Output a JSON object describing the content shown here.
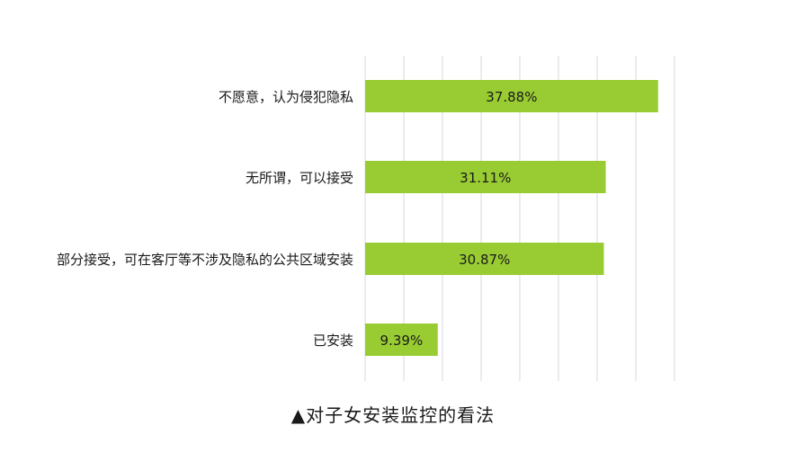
{
  "chart_data": {
    "type": "bar",
    "orientation": "horizontal",
    "categories": [
      "不愿意，认为侵犯隐私",
      "无所谓，可以接受",
      "部分接受，可在客厅等不涉及隐私的公共区域安装",
      "已安装"
    ],
    "values": [
      37.88,
      31.11,
      30.87,
      9.39
    ],
    "value_labels": [
      "37.88%",
      "31.11%",
      "30.87%",
      "9.39%"
    ],
    "xlim": [
      0,
      40
    ],
    "grid": true,
    "bar_color": "#99cc33",
    "title": "▲对子女安装监控的看法"
  }
}
